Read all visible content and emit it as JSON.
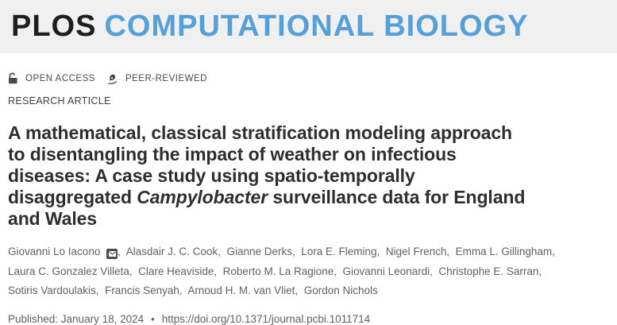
{
  "header": {
    "logo_plos": "PLOS",
    "logo_journal": "COMPUTATIONAL BIOLOGY"
  },
  "badges": {
    "open_access": "OPEN ACCESS",
    "peer_reviewed": "PEER-REVIEWED"
  },
  "article_type": "RESEARCH ARTICLE",
  "title": {
    "full_text": "A mathematical, classical stratification modeling approach to disentangling the impact of weather on infectious diseases: A case study using spatio-temporally disaggregated Campylobacter surveillance data for England and Wales",
    "segments": [
      {
        "text": "A mathematical, classical stratification modeling approach",
        "italic": false,
        "br": true
      },
      {
        "text": "to disentangling the impact of weather on infectious",
        "italic": false,
        "br": true
      },
      {
        "text": "diseases: A case study using spatio-temporally",
        "italic": false,
        "br": true
      },
      {
        "text": "disaggregated ",
        "italic": false,
        "br": false
      },
      {
        "text": "Campylobacter",
        "italic": true,
        "br": false
      },
      {
        "text": " surveillance data for England",
        "italic": false,
        "br": true
      },
      {
        "text": "and Wales",
        "italic": false,
        "br": false
      }
    ]
  },
  "authors": {
    "list": [
      {
        "name": "Giovanni Lo Iacono",
        "corresponding": true
      },
      {
        "name": "Alasdair J. C. Cook",
        "corresponding": false
      },
      {
        "name": "Gianne Derks",
        "corresponding": false
      },
      {
        "name": "Lora E. Fleming",
        "corresponding": false
      },
      {
        "name": "Nigel French",
        "corresponding": false
      },
      {
        "name": "Emma L. Gillingham",
        "corresponding": false
      },
      {
        "name": "Laura C. Gonzalez Villeta",
        "corresponding": false
      },
      {
        "name": "Clare Heaviside",
        "corresponding": false
      },
      {
        "name": "Roberto M. La Ragione",
        "corresponding": false
      },
      {
        "name": "Giovanni Leonardi",
        "corresponding": false
      },
      {
        "name": "Christophe E. Sarran",
        "corresponding": false
      },
      {
        "name": "Sotiris Vardoulakis",
        "corresponding": false
      },
      {
        "name": "Francis Senyah",
        "corresponding": false
      },
      {
        "name": "Arnoud H. M. van Vliet",
        "corresponding": false
      },
      {
        "name": "Gordon Nichols",
        "corresponding": false
      }
    ],
    "line_breaks_after": [
      5,
      10
    ]
  },
  "published": {
    "label": "Published: January 18, 2024",
    "separator": "•",
    "doi": "https://doi.org/10.1371/journal.pcbi.1011714"
  },
  "icons": {
    "open_access": "unlock-icon",
    "peer_reviewed": "pen-nib-icon",
    "corresponding_author": "envelope-icon"
  },
  "colors": {
    "brand_blue": "#55a0d9",
    "header_background": "#f0f0f1",
    "title_text": "#2e2e2e",
    "body_text": "#616161"
  }
}
